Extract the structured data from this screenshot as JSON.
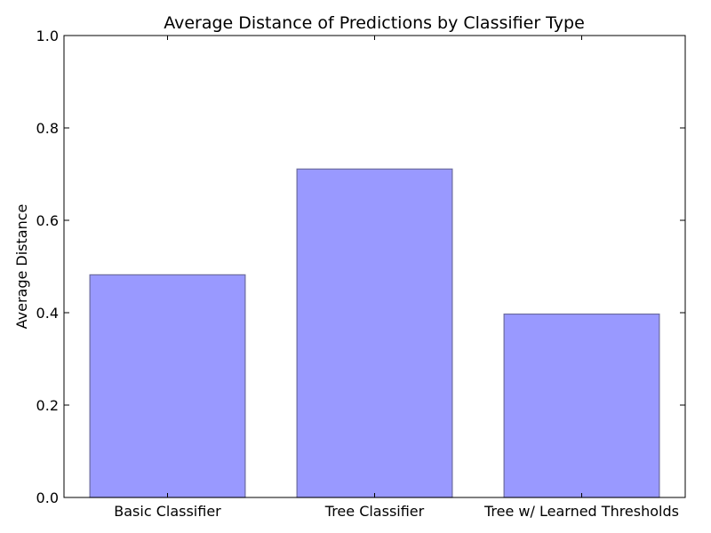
{
  "chart_data": {
    "type": "bar",
    "title": "Average Distance of Predictions by Classifier Type",
    "xlabel": "",
    "ylabel": "Average Distance",
    "categories": [
      "Basic Classifier",
      "Tree Classifier",
      "Tree w/ Learned Thresholds"
    ],
    "values": [
      0.482,
      0.711,
      0.397
    ],
    "ylim": [
      0,
      1.0
    ],
    "yticks": [
      "0.0",
      "0.2",
      "0.4",
      "0.6",
      "0.8",
      "1.0"
    ],
    "grid": false,
    "colors": {
      "bar_fill": "#9999ff",
      "bar_edge": "#6b6b9e",
      "axis": "#000000"
    }
  }
}
